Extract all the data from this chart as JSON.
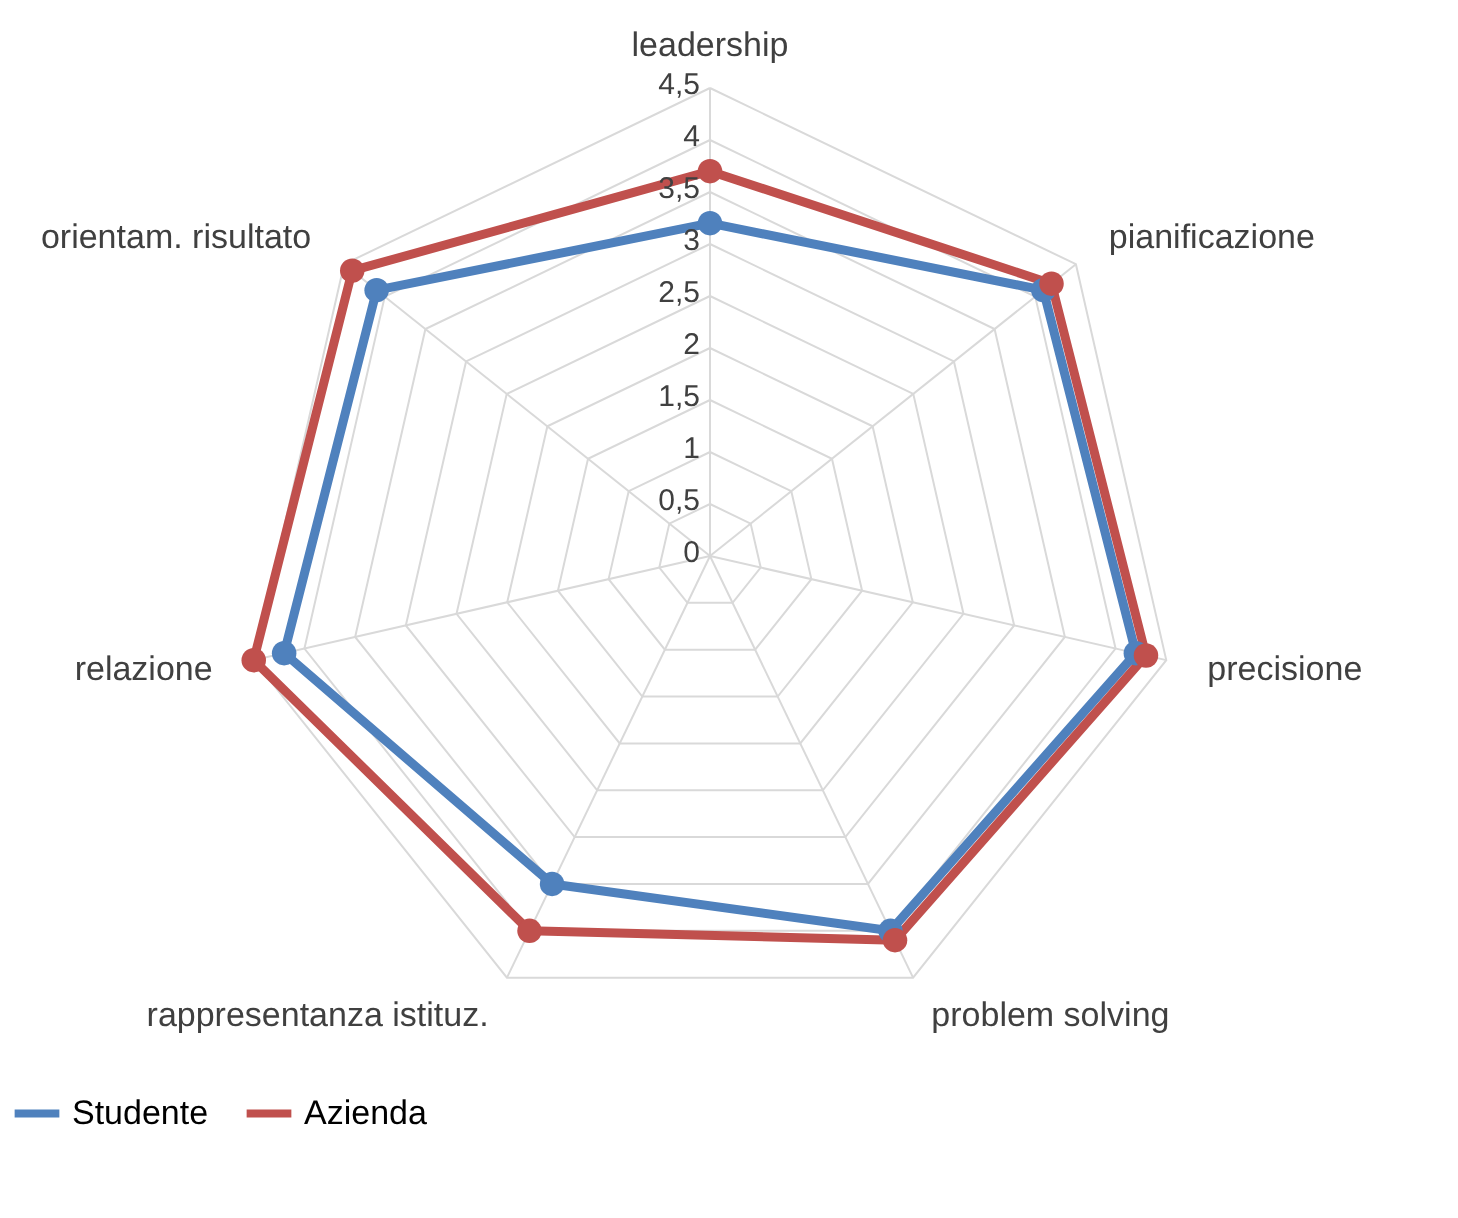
{
  "chart_data": {
    "type": "radar",
    "categories": [
      "leadership",
      "pianificazione",
      "precisione",
      "problem solving",
      "rappresentanza istituz.",
      "relazione",
      "orientam. risultato"
    ],
    "series": [
      {
        "name": "Studente",
        "color": "#4f81bd",
        "values": [
          3.2,
          4.1,
          4.2,
          4.0,
          3.5,
          4.2,
          4.1
        ]
      },
      {
        "name": "Azienda",
        "color": "#c0504d",
        "values": [
          3.7,
          4.2,
          4.3,
          4.1,
          4.0,
          4.5,
          4.4
        ]
      }
    ],
    "ylim": [
      0,
      4.5
    ],
    "yticks": [
      0,
      {
        "value": 0.5,
        "label": "0,5"
      },
      1,
      {
        "value": 1.5,
        "label": "1,5"
      },
      2,
      {
        "value": 2.5,
        "label": "2,5"
      },
      3,
      {
        "value": 3.5,
        "label": "3,5"
      },
      4,
      {
        "value": 4.5,
        "label": "4,5"
      }
    ],
    "grid": true,
    "legend": "bottom",
    "marker": "circle",
    "line_style": "solid"
  }
}
